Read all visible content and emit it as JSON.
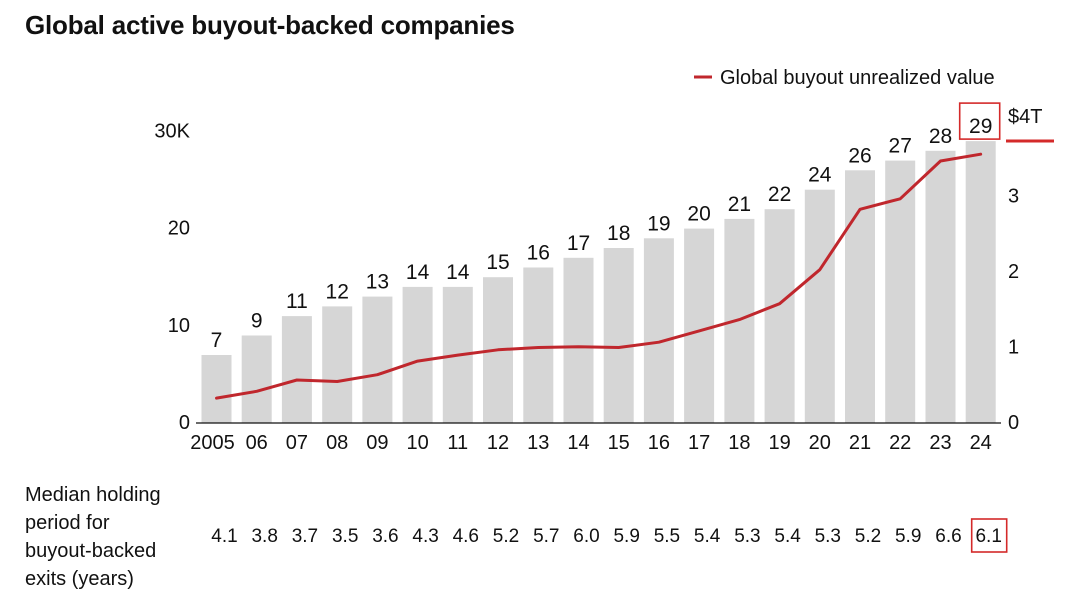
{
  "title": "Global active buyout-backed companies",
  "colors": {
    "bar": "#d6d6d6",
    "line": "#c0272d",
    "highlight_box": "#d42a2a",
    "text": "#111111"
  },
  "chart_data": {
    "type": "bar",
    "categories": [
      "2005",
      "06",
      "07",
      "08",
      "09",
      "10",
      "11",
      "12",
      "13",
      "14",
      "15",
      "16",
      "17",
      "18",
      "19",
      "20",
      "21",
      "22",
      "23",
      "24"
    ],
    "series": [
      {
        "name": "",
        "values": [
          7,
          9,
          11,
          12,
          13,
          14,
          14,
          15,
          16,
          17,
          18,
          19,
          20,
          21,
          22,
          24,
          26,
          27,
          28,
          29
        ],
        "y_axis": "left",
        "style": "bar"
      },
      {
        "name": "Global buyout unrealized value",
        "values": [
          0.33,
          0.42,
          0.57,
          0.55,
          0.64,
          0.82,
          0.9,
          0.97,
          1.0,
          1.01,
          1.0,
          1.07,
          1.22,
          1.37,
          1.58,
          2.03,
          2.83,
          2.97,
          3.47,
          3.56
        ],
        "y_axis": "right",
        "style": "line"
      }
    ],
    "bar_labels": [
      "7",
      "9",
      "11",
      "12",
      "13",
      "14",
      "14",
      "15",
      "16",
      "17",
      "18",
      "19",
      "20",
      "21",
      "22",
      "24",
      "26",
      "27",
      "28",
      "29"
    ],
    "y_left": {
      "ticks": [
        0,
        10,
        20,
        30
      ],
      "tick_labels": [
        "0",
        "10",
        "20",
        "30K"
      ],
      "ylim": [
        0,
        30
      ]
    },
    "y_right": {
      "ticks": [
        0,
        1,
        2,
        3,
        4
      ],
      "tick_labels": [
        "0",
        "1",
        "2",
        "3",
        "$4T"
      ],
      "ylim": [
        0,
        4
      ]
    },
    "legend": {
      "position": "top-right",
      "entries": [
        "Global buyout unrealized value"
      ]
    },
    "highlighted_bar_label": "29",
    "grid": false
  },
  "holding_period": {
    "label_lines": [
      "Median holding",
      "period for",
      "buyout-backed",
      "exits (years)"
    ],
    "values": [
      "4.1",
      "3.8",
      "3.7",
      "3.5",
      "3.6",
      "4.3",
      "4.6",
      "5.2",
      "5.7",
      "6.0",
      "5.9",
      "5.5",
      "5.4",
      "5.3",
      "5.4",
      "5.3",
      "5.2",
      "5.9",
      "6.6",
      "6.1"
    ],
    "highlighted_value": "6.1"
  }
}
